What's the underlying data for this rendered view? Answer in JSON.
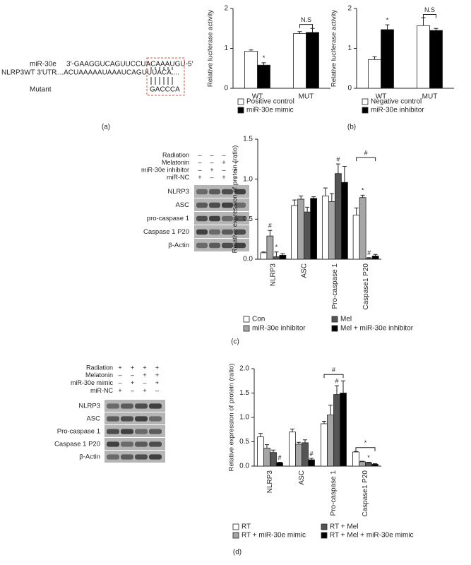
{
  "panel_labels": {
    "a": "(a)",
    "b": "(b)",
    "c": "(c)",
    "d": "(d)"
  },
  "panel_a": {
    "mirna_name": "miR-30e",
    "mirna_seq": "3′-GAAGGUCAGUUCCUACAAAUGU-5′",
    "target_name": "NLRP3WT 3′UTR",
    "target_seq": "....ACUAAAAAUAAAUCAGUUUACA....",
    "mutant_name": "Mutant",
    "mutant_seq": "GACCCA"
  },
  "blots": [
    {
      "conditions": [
        {
          "name": "Radiation",
          "signs": [
            "–",
            "–",
            "–",
            "–"
          ]
        },
        {
          "name": "Melatonin",
          "signs": [
            "–",
            "–",
            "+",
            "+"
          ]
        },
        {
          "name": "miR-30e inhibitor",
          "signs": [
            "–",
            "+",
            "–",
            "+"
          ]
        },
        {
          "name": "miR-NC",
          "signs": [
            "+",
            "–",
            "+",
            "–"
          ]
        }
      ],
      "rows": [
        "NLRP3",
        "ASC",
        "pro-caspase 1",
        "Caspase 1 P20",
        "β-Actin"
      ]
    },
    {
      "conditions": [
        {
          "name": "Radiation",
          "signs": [
            "+",
            "+",
            "+",
            "+"
          ]
        },
        {
          "name": "Melatonin",
          "signs": [
            "–",
            "–",
            "+",
            "+"
          ]
        },
        {
          "name": "miR-30e mimic",
          "signs": [
            "–",
            "+",
            "–",
            "+"
          ]
        },
        {
          "name": "miR-NC",
          "signs": [
            "+",
            "–",
            "+",
            "–"
          ]
        }
      ],
      "rows": [
        "NLRP3",
        "ASC",
        "Pro-caspase 1",
        "Caspase 1 P20",
        "β-Actin"
      ]
    }
  ],
  "chart_data": [
    {
      "type": "bar",
      "ylabel": "Relative luciferase activity",
      "categories": [
        "WT",
        "MUT"
      ],
      "ylim": [
        0,
        2
      ],
      "yticks": [
        0,
        1,
        2
      ],
      "series": [
        {
          "name": "Positive control",
          "color": "#ffffff",
          "values": [
            0.93,
            1.37
          ],
          "errors": [
            0.03,
            0.05
          ]
        },
        {
          "name": "miR-30e mimic",
          "color": "#000000",
          "values": [
            0.58,
            1.4
          ],
          "errors": [
            0.06,
            0.1
          ]
        }
      ],
      "annotations": [
        "*",
        "N.S"
      ]
    },
    {
      "type": "bar",
      "ylabel": "Relative luciferase activity",
      "categories": [
        "WT",
        "MUT"
      ],
      "ylim": [
        0,
        2
      ],
      "yticks": [
        0,
        1,
        2
      ],
      "series": [
        {
          "name": "Negative control",
          "color": "#ffffff",
          "values": [
            0.72,
            1.57
          ],
          "errors": [
            0.07,
            0.2
          ]
        },
        {
          "name": "miR-30e inhibitor",
          "color": "#000000",
          "values": [
            1.47,
            1.45
          ],
          "errors": [
            0.12,
            0.05
          ]
        }
      ],
      "annotations": [
        "*",
        "N.S"
      ]
    },
    {
      "type": "bar",
      "ylabel": "Relative expression of protein (ratio)",
      "categories": [
        "NLRP3",
        "ASC",
        "Pro-caspase 1",
        "Caspase1 P20"
      ],
      "ylim": [
        0,
        1.5
      ],
      "yticks": [
        {
          "value": 0,
          "label": "0.0"
        },
        0.5,
        {
          "value": 1,
          "label": "1.0"
        },
        1.5
      ],
      "series": [
        {
          "name": "Con",
          "color": "#ffffff",
          "values": [
            0.08,
            0.67,
            0.79,
            0.55
          ],
          "errors": [
            0.01,
            0.07,
            0.1,
            0.09
          ]
        },
        {
          "name": "miR-30e inhibitor",
          "color": "#a6a6a6",
          "values": [
            0.29,
            0.75,
            0.72,
            0.77
          ],
          "errors": [
            0.07,
            0.04,
            0.1,
            0.03
          ]
        },
        {
          "name": "Mel",
          "color": "#555555",
          "values": [
            0.03,
            0.59,
            1.07,
            0.01
          ],
          "errors": [
            0.06,
            0.06,
            0.12,
            0.01
          ]
        },
        {
          "name": "Mel + miR-30e inhibitor",
          "color": "#000000",
          "values": [
            0.05,
            0.76,
            0.96,
            0.04
          ],
          "errors": [
            0.02,
            0.02,
            0.2,
            0.02
          ]
        }
      ],
      "annotations": [
        "#",
        "*",
        "#",
        "*",
        "#",
        "#"
      ]
    },
    {
      "type": "bar",
      "ylabel": "Relative expression of protein (ratio)",
      "categories": [
        "NLRP3",
        "ASC",
        "Pro-caspase 1",
        "Caspase1 P20"
      ],
      "ylim": [
        0,
        2
      ],
      "yticks": [
        {
          "value": 0,
          "label": "0.0"
        },
        0.5,
        {
          "value": 1,
          "label": "1.0"
        },
        1.5,
        {
          "value": 2,
          "label": "2.0"
        }
      ],
      "series": [
        {
          "name": "RT",
          "color": "#ffffff",
          "values": [
            0.6,
            0.7,
            0.87,
            0.29
          ],
          "errors": [
            0.07,
            0.06,
            0.05,
            0.01
          ]
        },
        {
          "name": "RT + miR-30e mimic",
          "color": "#a6a6a6",
          "values": [
            0.37,
            0.45,
            1.05,
            0.09
          ],
          "errors": [
            0.07,
            0.04,
            0.2,
            0.01
          ]
        },
        {
          "name": "RT + Mel",
          "color": "#555555",
          "values": [
            0.28,
            0.48,
            1.47,
            0.07
          ],
          "errors": [
            0.05,
            0.06,
            0.18,
            0.01
          ]
        },
        {
          "name": "RT + Mel + miR-30e mimic",
          "color": "#000000",
          "values": [
            0.07,
            0.13,
            1.5,
            0.04
          ],
          "errors": [
            0.01,
            0.03,
            0.25,
            0.01
          ]
        }
      ],
      "annotations": [
        "#",
        "#",
        "#",
        "#",
        "*",
        "*"
      ]
    }
  ]
}
